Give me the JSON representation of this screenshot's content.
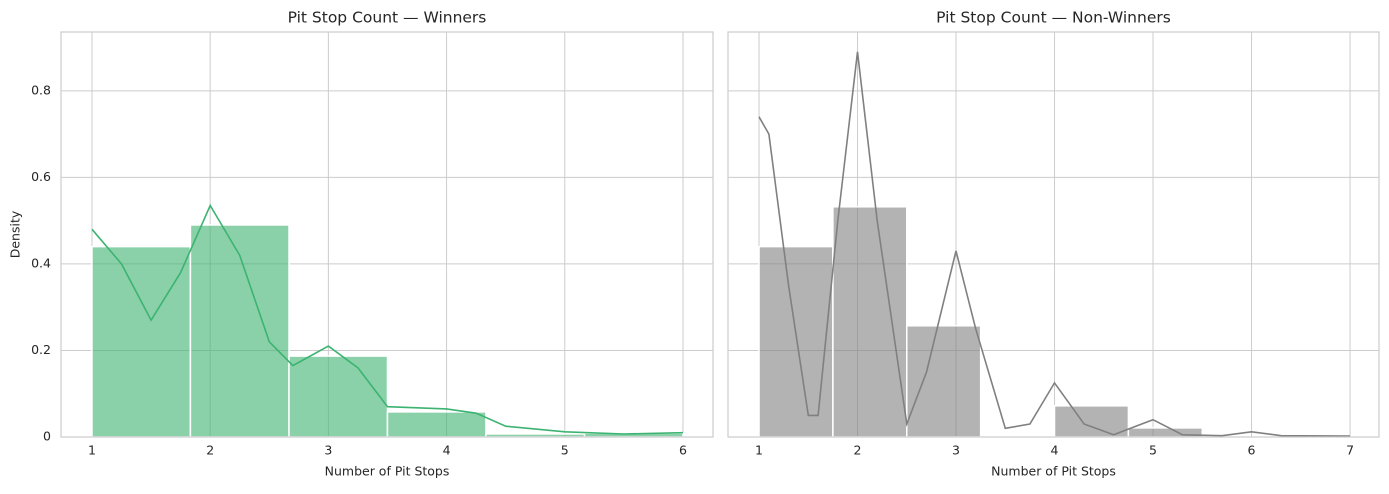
{
  "chart_data": [
    {
      "type": "histogram",
      "title": "Pit Stop Count — Winners",
      "xlabel": "Number of Pit Stops",
      "ylabel": "Density",
      "color": "#3cb371",
      "bins": [
        1,
        1.833,
        2.667,
        3.5,
        4.333,
        5.167,
        6
      ],
      "values": [
        0.44,
        0.49,
        0.187,
        0.058,
        0.007,
        0.009
      ],
      "kde": {
        "x": [
          1,
          1.25,
          1.5,
          1.75,
          2,
          2.25,
          2.5,
          2.7,
          3,
          3.25,
          3.5,
          4,
          4.25,
          4.5,
          5,
          5.5,
          6
        ],
        "y": [
          0.48,
          0.4,
          0.27,
          0.38,
          0.535,
          0.42,
          0.22,
          0.165,
          0.21,
          0.16,
          0.07,
          0.065,
          0.055,
          0.025,
          0.012,
          0.007,
          0.01
        ]
      },
      "xlim": [
        0.738,
        6.254
      ],
      "xticks": [
        1,
        2,
        3,
        4,
        5,
        6
      ],
      "ylim": [
        0,
        0.936
      ],
      "yticks": [
        0.0,
        0.2,
        0.4,
        0.6,
        0.8
      ],
      "grid": true
    },
    {
      "type": "histogram",
      "title": "Pit Stop Count — Non-Winners",
      "xlabel": "Number of Pit Stops",
      "color": "#808080",
      "sharey": true,
      "bins": [
        1,
        1.75,
        2.5,
        3.25,
        4,
        4.75,
        5.5,
        6.25,
        7
      ],
      "values": [
        0.44,
        0.532,
        0.257,
        0,
        0.072,
        0.021,
        0,
        0
      ],
      "kde": {
        "x": [
          1,
          1.1,
          1.3,
          1.5,
          1.6,
          1.8,
          2,
          2.2,
          2.5,
          2.7,
          3,
          3.2,
          3.5,
          3.75,
          4,
          4.3,
          4.6,
          5,
          5.3,
          5.7,
          6,
          6.3,
          7
        ],
        "y": [
          0.74,
          0.7,
          0.35,
          0.05,
          0.05,
          0.5,
          0.89,
          0.5,
          0.03,
          0.15,
          0.43,
          0.25,
          0.02,
          0.03,
          0.125,
          0.03,
          0.005,
          0.04,
          0.005,
          0.003,
          0.012,
          0.003,
          0.002
        ]
      },
      "xlim": [
        0.685,
        7.294
      ],
      "xticks": [
        1,
        2,
        3,
        4,
        5,
        6,
        7
      ],
      "grid": true
    }
  ]
}
